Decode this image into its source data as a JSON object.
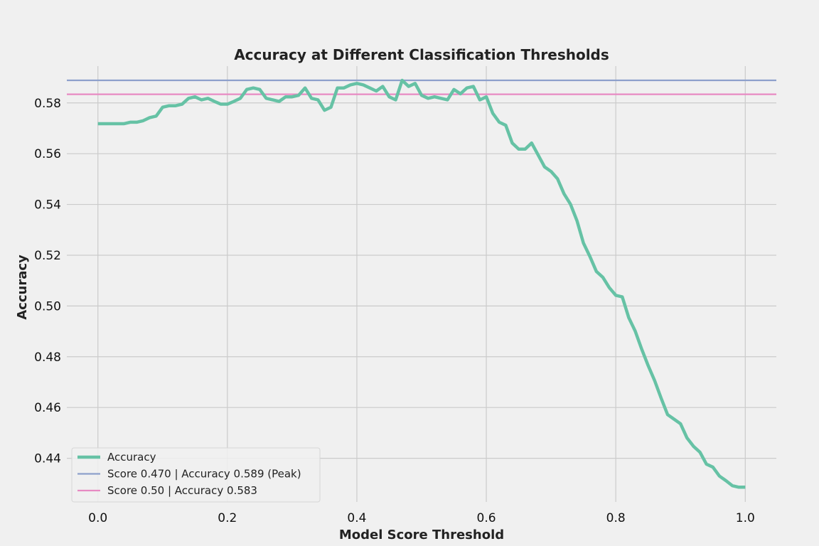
{
  "chart_data": {
    "type": "line",
    "title": "Accuracy at Different Classification Thresholds",
    "xlabel": "Model Score Threshold",
    "ylabel": "Accuracy",
    "xlim": [
      -0.048,
      1.048
    ],
    "ylim": [
      0.4228,
      0.5945
    ],
    "xticks": [
      0.0,
      0.2,
      0.4,
      0.6,
      0.8,
      1.0
    ],
    "xtick_labels": [
      "0.0",
      "0.2",
      "0.4",
      "0.6",
      "0.8",
      "1.0"
    ],
    "yticks": [
      0.44,
      0.46,
      0.48,
      0.5,
      0.52,
      0.54,
      0.56,
      0.58
    ],
    "ytick_labels": [
      "0.44",
      "0.46",
      "0.48",
      "0.50",
      "0.52",
      "0.54",
      "0.56",
      "0.58"
    ],
    "grid": true,
    "legend_position": "bottom-left",
    "series": [
      {
        "name": "Accuracy",
        "kind": "line",
        "color": "#66c2a5",
        "x": [
          0.0,
          0.01,
          0.02,
          0.03,
          0.04,
          0.05,
          0.06,
          0.07,
          0.08,
          0.09,
          0.1,
          0.11,
          0.12,
          0.13,
          0.14,
          0.15,
          0.16,
          0.17,
          0.18,
          0.19,
          0.2,
          0.21,
          0.22,
          0.23,
          0.24,
          0.25,
          0.26,
          0.27,
          0.28,
          0.29,
          0.3,
          0.31,
          0.32,
          0.33,
          0.34,
          0.35,
          0.36,
          0.37,
          0.38,
          0.39,
          0.4,
          0.41,
          0.42,
          0.43,
          0.44,
          0.45,
          0.46,
          0.47,
          0.48,
          0.49,
          0.5,
          0.51,
          0.52,
          0.53,
          0.54,
          0.55,
          0.56,
          0.57,
          0.58,
          0.59,
          0.6,
          0.61,
          0.62,
          0.63,
          0.64,
          0.65,
          0.66,
          0.67,
          0.68,
          0.69,
          0.7,
          0.71,
          0.72,
          0.73,
          0.74,
          0.75,
          0.76,
          0.77,
          0.78,
          0.79,
          0.8,
          0.81,
          0.82,
          0.83,
          0.84,
          0.85,
          0.86,
          0.87,
          0.88,
          0.89,
          0.9,
          0.91,
          0.92,
          0.93,
          0.94,
          0.95,
          0.96,
          0.97,
          0.98,
          0.99,
          1.0
        ],
        "y": [
          0.5718,
          0.5718,
          0.5718,
          0.5718,
          0.5718,
          0.5724,
          0.5724,
          0.573,
          0.5742,
          0.5748,
          0.5783,
          0.5789,
          0.5789,
          0.5795,
          0.5818,
          0.5824,
          0.5812,
          0.5818,
          0.5806,
          0.5795,
          0.5795,
          0.5806,
          0.5818,
          0.5853,
          0.5859,
          0.5853,
          0.5818,
          0.5812,
          0.5806,
          0.5824,
          0.5824,
          0.583,
          0.5859,
          0.5818,
          0.5812,
          0.5771,
          0.5783,
          0.5859,
          0.5859,
          0.5871,
          0.5877,
          0.5871,
          0.5859,
          0.5847,
          0.5865,
          0.5824,
          0.5812,
          0.5889,
          0.5865,
          0.5877,
          0.583,
          0.5818,
          0.5824,
          0.5818,
          0.5812,
          0.5853,
          0.5836,
          0.5859,
          0.5865,
          0.5812,
          0.5824,
          0.5759,
          0.5724,
          0.5712,
          0.5642,
          0.5618,
          0.5618,
          0.5642,
          0.5595,
          0.5548,
          0.553,
          0.5501,
          0.5442,
          0.5401,
          0.5336,
          0.5248,
          0.5195,
          0.5136,
          0.5113,
          0.5072,
          0.5042,
          0.5036,
          0.4954,
          0.4901,
          0.483,
          0.4765,
          0.4706,
          0.4637,
          0.4572,
          0.4554,
          0.4536,
          0.448,
          0.4447,
          0.4424,
          0.4377,
          0.4365,
          0.433,
          0.4312,
          0.4292,
          0.4286,
          0.4286
        ]
      },
      {
        "name": "Score 0.470 | Accuracy 0.589 (Peak)",
        "kind": "hline",
        "color": "#8da0cb",
        "y": 0.5889
      },
      {
        "name": "Score 0.50 | Accuracy 0.583",
        "kind": "hline",
        "color": "#e78ac3",
        "y": 0.5834
      }
    ]
  }
}
